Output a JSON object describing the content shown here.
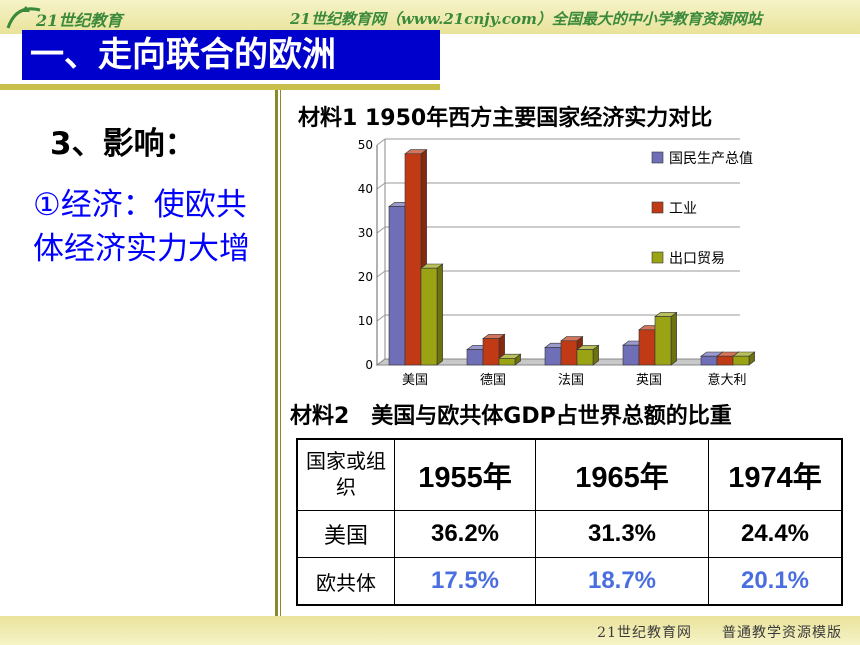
{
  "header": {
    "logo_text": "21世纪教育",
    "slogan": "21世纪教育网（www.21cnjy.com）全国最大的中小学教育资源网站"
  },
  "title": "一、走向联合的欧洲",
  "heading": "3、影响：",
  "econ_text": "①经济：使欧共体经济实力大增",
  "material1_title": "材料1 1950年西方主要国家经济实力对比",
  "material2_title": "材料2　美国与欧共体GDP占世界总额的比重",
  "chart_data": {
    "type": "bar",
    "categories": [
      "美国",
      "德国",
      "法国",
      "英国",
      "意大利"
    ],
    "series": [
      {
        "name": "国民生产总值",
        "values": [
          36,
          3.5,
          4,
          4.5,
          2
        ],
        "color": "#6f6fb8"
      },
      {
        "name": "工业",
        "values": [
          48,
          6,
          5.5,
          8,
          2
        ],
        "color": "#c03a16"
      },
      {
        "name": "出口贸易",
        "values": [
          22,
          1.5,
          3.5,
          11,
          2
        ],
        "color": "#99a314"
      }
    ],
    "ylim": [
      0,
      50
    ],
    "yticks": [
      0,
      10,
      20,
      30,
      40,
      50
    ],
    "grid": true,
    "legend_position": "right"
  },
  "table": {
    "headers": [
      "国家或组织",
      "1955年",
      "1965年",
      "1974年"
    ],
    "rows": [
      {
        "label": "美国",
        "values": [
          "36.2%",
          "31.3%",
          "24.4%"
        ]
      },
      {
        "label": "欧共体",
        "values": [
          "17.5%",
          "18.7%",
          "20.1%"
        ]
      }
    ]
  },
  "footer": {
    "text": "21世纪教育网　　普通教学资源模版"
  },
  "colors": {
    "title_bg": "#0000cc",
    "econ_text": "#0000ff",
    "table_blue": "#4a6ee0",
    "bar_accent": "#e9e39a"
  }
}
